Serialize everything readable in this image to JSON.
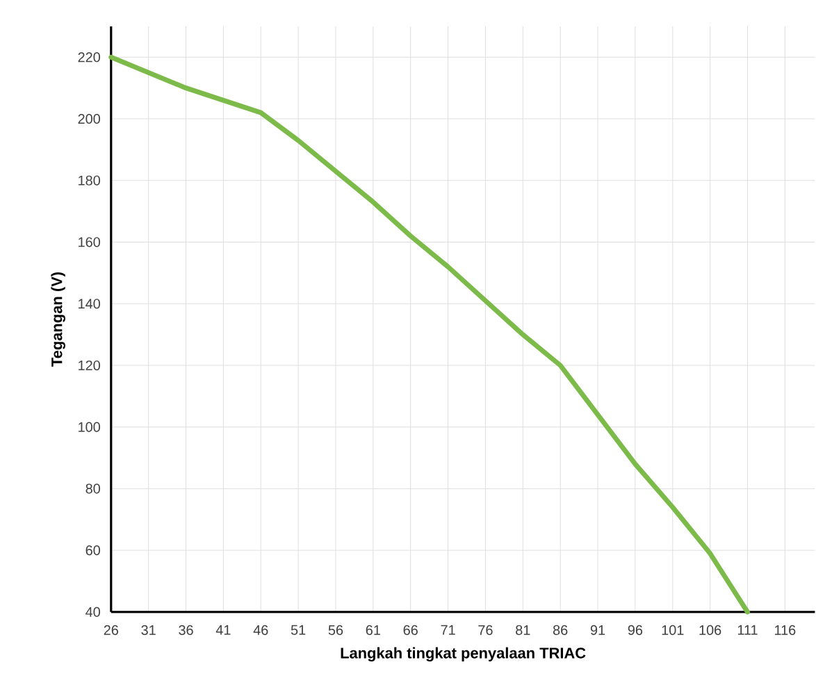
{
  "chart_data": {
    "type": "line",
    "xlabel": "Langkah tingkat penyalaan TRIAC",
    "ylabel": "Tegangan (V)",
    "x": [
      26,
      31,
      36,
      41,
      46,
      51,
      56,
      61,
      66,
      71,
      76,
      81,
      86,
      91,
      96,
      101,
      106,
      111
    ],
    "series": [
      {
        "color": "#7cba4a",
        "values": [
          220,
          215,
          210,
          206,
          202,
          193,
          183,
          173,
          162,
          152,
          141,
          130,
          120,
          104,
          88,
          74,
          59,
          40
        ]
      }
    ],
    "xlim": [
      26,
      120
    ],
    "xticks": [
      26,
      31,
      36,
      41,
      46,
      51,
      56,
      61,
      66,
      71,
      76,
      81,
      86,
      91,
      96,
      101,
      106,
      111,
      116
    ],
    "ylim": [
      40,
      230
    ],
    "yticks": [
      40,
      60,
      80,
      100,
      120,
      140,
      160,
      180,
      200,
      220
    ],
    "grid": true,
    "marker": "none",
    "line_style": "solid"
  }
}
